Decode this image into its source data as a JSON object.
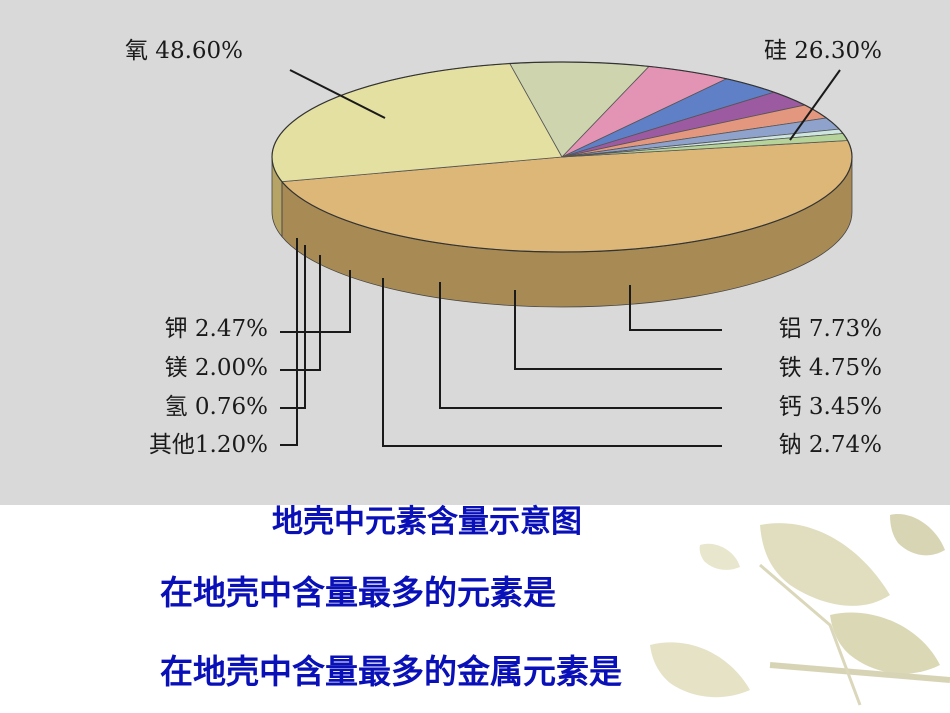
{
  "chart_data": {
    "type": "pie",
    "title": "地壳中元素含量示意图",
    "slices": [
      {
        "name": "氧",
        "value": 48.6,
        "label": "氧 48.60%",
        "color": "#dcb777",
        "side": "#a88a55"
      },
      {
        "name": "硅",
        "value": 26.3,
        "label": "硅 26.30%",
        "color": "#e4e0a2",
        "side": "#b5a466"
      },
      {
        "name": "铝",
        "value": 7.73,
        "label": "铝 7.73%",
        "color": "#ced5ae",
        "side": "#a39a7c"
      },
      {
        "name": "铁",
        "value": 4.75,
        "label": "铁 4.75%",
        "color": "#e394b4",
        "side": "#b06a86"
      },
      {
        "name": "钙",
        "value": 3.45,
        "label": "钙 3.45%",
        "color": "#5f7fc6",
        "side": "#65708c"
      },
      {
        "name": "钠",
        "value": 2.74,
        "label": "钠 2.74%",
        "color": "#9c5aa1",
        "side": "#814d75"
      },
      {
        "name": "钾",
        "value": 2.47,
        "label": "钾 2.47%",
        "color": "#e4977f",
        "side": "#b87262"
      },
      {
        "name": "镁",
        "value": 2.0,
        "label": "镁 2.00%",
        "color": "#8ea2cc",
        "side": "#62708a"
      },
      {
        "name": "氢",
        "value": 0.76,
        "label": "氢 0.76%",
        "color": "#cfe6e0",
        "side": "#8ea0a0"
      },
      {
        "name": "其他",
        "value": 1.2,
        "label": "其他1.20%",
        "color": "#b6d39a",
        "side": "#7f9a6a"
      }
    ]
  },
  "questions": {
    "q1": "在地壳中含量最多的元素是",
    "q2": "在地壳中含量最多的金属元素是"
  },
  "colors": {
    "panel_bg": "#d9d9d9",
    "caption_text": "#0a10b8"
  }
}
